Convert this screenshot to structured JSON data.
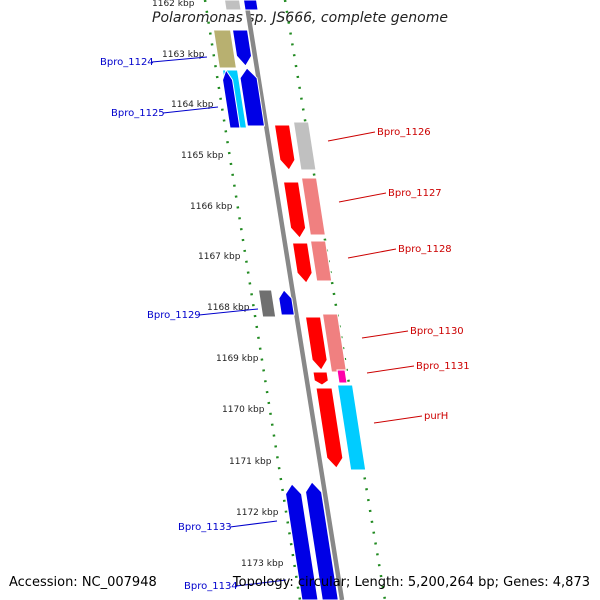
{
  "title": "Polaromonas sp. JS666, complete genome",
  "footer": {
    "accession": "Accession: NC_007948",
    "summary": "Topology: circular; Length: 5,200,264 bp; Genes: 4,873"
  },
  "kbp_ticks": [
    "1162 kbp",
    "1163 kbp",
    "1164 kbp",
    "1165 kbp",
    "1166 kbp",
    "1167 kbp",
    "1168 kbp",
    "1169 kbp",
    "1170 kbp",
    "1171 kbp",
    "1172 kbp",
    "1173 kbp"
  ],
  "gene_labels": [
    "Bpro_1124",
    "Bpro_1125",
    "Bpro_1126",
    "Bpro_1127",
    "Bpro_1128",
    "Bpro_1129",
    "Bpro_1130",
    "Bpro_1131",
    "purH",
    "Bpro_1133",
    "Bpro_1134"
  ],
  "colors": {
    "label_forward": "#0000cc",
    "label_reverse": "#cc0000",
    "backbone": "#888888",
    "ruler": "#228b22"
  }
}
